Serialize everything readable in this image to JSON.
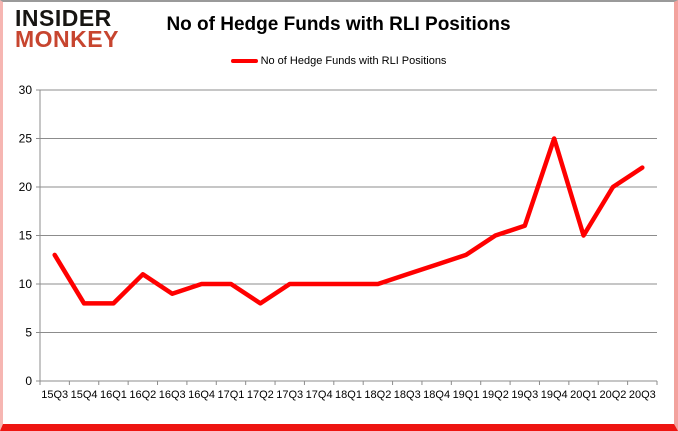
{
  "logo": {
    "line1": "INSIDER",
    "line2": "MONKEY"
  },
  "header": {
    "title": "No of Hedge Funds with RLI Positions"
  },
  "legend": {
    "label": "No of Hedge Funds with RLI Positions",
    "swatch_color": "#ff0000"
  },
  "colors": {
    "line": "#ff0000",
    "gridline": "#8c8c8c",
    "axis": "#8c8c8c",
    "text": "#000000",
    "logo_monkey": "#c7452f",
    "frame_bottom": "#ee1511"
  },
  "chart_data": {
    "type": "line",
    "title": "No of Hedge Funds with RLI Positions",
    "categories": [
      "15Q3",
      "15Q4",
      "16Q1",
      "16Q2",
      "16Q3",
      "16Q4",
      "17Q1",
      "17Q2",
      "17Q3",
      "17Q4",
      "18Q1",
      "18Q2",
      "18Q3",
      "18Q4",
      "19Q1",
      "19Q2",
      "19Q3",
      "19Q4",
      "20Q1",
      "20Q2",
      "20Q3"
    ],
    "series": [
      {
        "name": "No of Hedge Funds with RLI Positions",
        "color": "#ff0000",
        "values": [
          13,
          8,
          8,
          11,
          9,
          10,
          10,
          8,
          10,
          10,
          10,
          10,
          11,
          12,
          13,
          15,
          16,
          25,
          15,
          20,
          22
        ]
      }
    ],
    "xlabel": "",
    "ylabel": "",
    "ylim": [
      0,
      30
    ],
    "yticks": [
      0,
      5,
      10,
      15,
      20,
      25,
      30
    ],
    "grid": true,
    "legend_position": "top-center"
  }
}
